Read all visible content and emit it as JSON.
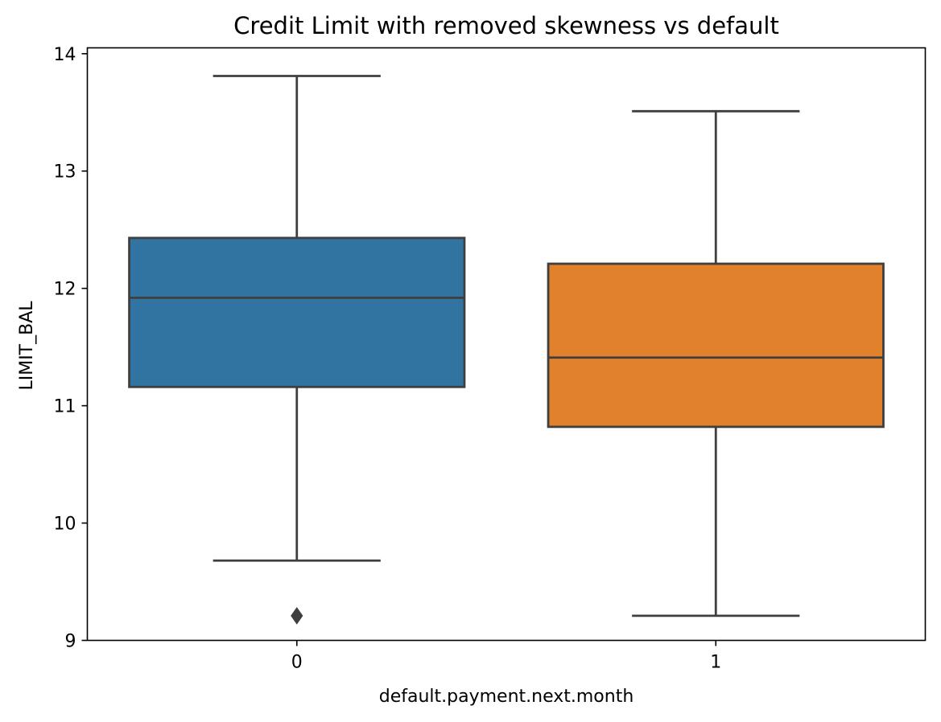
{
  "chart_data": {
    "type": "box",
    "title": "Credit Limit with removed skewness vs default",
    "xlabel": "default.payment.next.month",
    "ylabel": "LIMIT_BAL",
    "ylim": [
      9.0,
      14.05
    ],
    "yticks": [
      9,
      10,
      11,
      12,
      13,
      14
    ],
    "grid": false,
    "line_color": "#3f3f3f",
    "categories": [
      "0",
      "1"
    ],
    "boxes": [
      {
        "category": "0",
        "whisker_low": 9.68,
        "q1": 11.16,
        "median": 11.92,
        "q3": 12.43,
        "whisker_high": 13.81,
        "outliers": [
          9.21
        ],
        "color": "#3274a1"
      },
      {
        "category": "1",
        "whisker_low": 9.21,
        "q1": 10.82,
        "median": 11.41,
        "q3": 12.21,
        "whisker_high": 13.51,
        "outliers": [],
        "color": "#e1812c"
      }
    ]
  }
}
